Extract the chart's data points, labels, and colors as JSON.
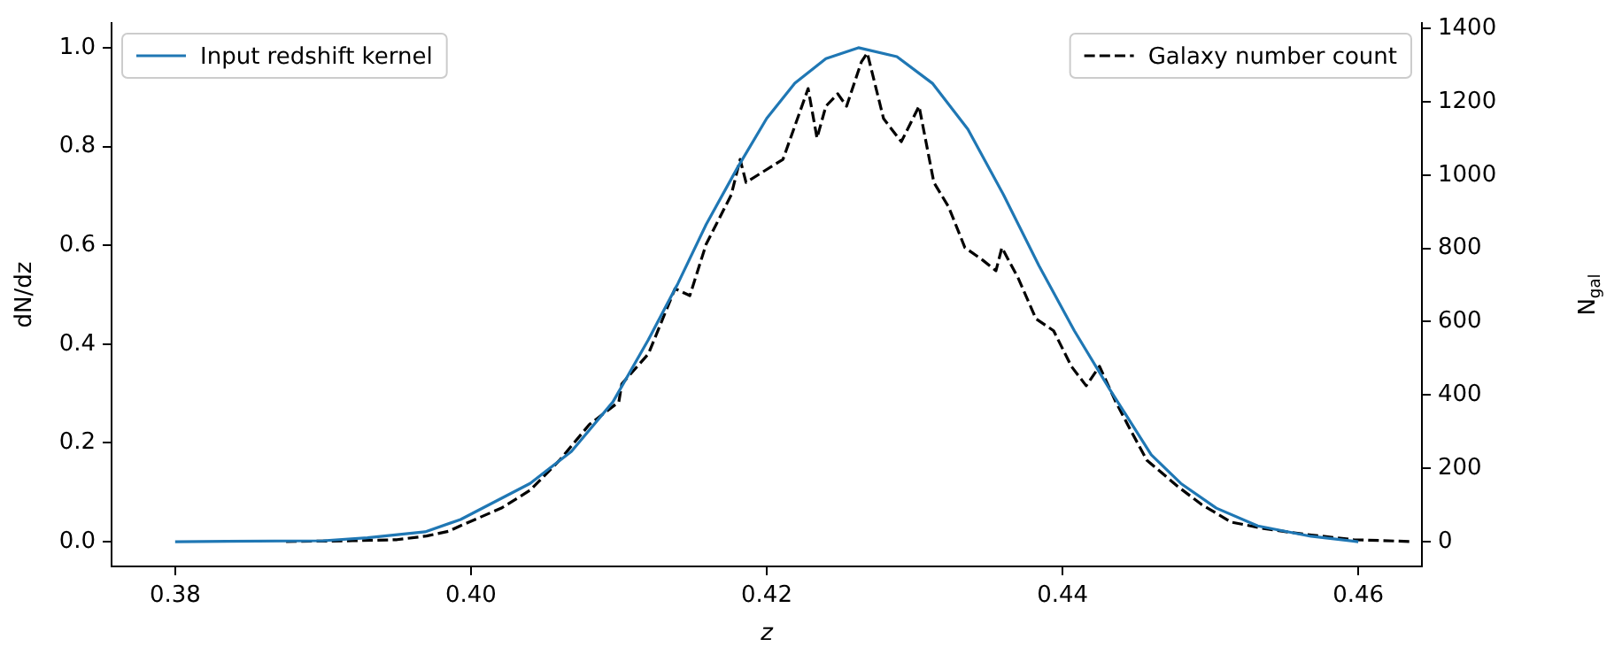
{
  "chart_data": {
    "type": "line",
    "xlabel": "z",
    "ylabel": "dN/dz",
    "y2label": "N$_{gal}$",
    "xlim": [
      0.3757,
      0.4643
    ],
    "xticks": [
      0.38,
      {
        "value": 0.4,
        "label": "0.40"
      },
      0.42,
      0.44,
      0.46
    ],
    "ylim": [
      -0.05,
      1.05
    ],
    "yticks": [
      {
        "value": 0,
        "label": "0.0"
      },
      0.2,
      0.4,
      0.6,
      0.8,
      {
        "value": 1,
        "label": "1.0"
      }
    ],
    "y2lim": [
      -68,
      1415
    ],
    "y2ticks": [
      0,
      200,
      400,
      600,
      800,
      1000,
      1200,
      1400
    ],
    "grid": false,
    "legend": "top",
    "line_style": "solid",
    "marker": "none",
    "series": [
      {
        "name": "Input redshift kernel",
        "color": "#1f77b4",
        "x": [
          0.38,
          0.39,
          0.393,
          0.3969,
          0.3993,
          0.404,
          0.4068,
          0.4096,
          0.412,
          0.414,
          0.4159,
          0.418,
          0.42,
          0.4219,
          0.424,
          0.4262,
          0.4288,
          0.4312,
          0.4336,
          0.436,
          0.4384,
          0.4408,
          0.4432,
          0.446,
          0.448,
          0.4504,
          0.4532,
          0.4568,
          0.46
        ],
        "values": [
          0,
          0.002,
          0.008,
          0.02,
          0.045,
          0.118,
          0.183,
          0.283,
          0.409,
          0.523,
          0.642,
          0.756,
          0.857,
          0.928,
          0.978,
          1.0,
          0.982,
          0.928,
          0.835,
          0.703,
          0.559,
          0.427,
          0.308,
          0.176,
          0.118,
          0.068,
          0.032,
          0.011,
          0
        ]
      },
      {
        "name": "Galaxy number count",
        "color": "#000000",
        "axis": "y2",
        "line_style": "dashed",
        "x": [
          0.3875,
          0.392,
          0.395,
          0.397,
          0.3985,
          0.3993,
          0.4021,
          0.404,
          0.406,
          0.408,
          0.41,
          0.4102,
          0.412,
          0.4138,
          0.4148,
          0.4159,
          0.4176,
          0.4182,
          0.4186,
          0.4211,
          0.4228,
          0.4234,
          0.424,
          0.4248,
          0.4254,
          0.4264,
          0.4268,
          0.4279,
          0.4291,
          0.4303,
          0.4313,
          0.4323,
          0.4334,
          0.4346,
          0.4355,
          0.4359,
          0.437,
          0.4382,
          0.4394,
          0.4406,
          0.4416,
          0.4425,
          0.4436,
          0.4446,
          0.4457,
          0.4478,
          0.4494,
          0.4514,
          0.4538,
          0.4565,
          0.4597,
          0.4635
        ],
        "values": [
          0,
          2,
          5,
          15,
          28,
          43,
          92,
          140,
          222,
          319,
          381,
          430,
          512,
          690,
          671,
          811,
          946,
          1043,
          980,
          1043,
          1236,
          1101,
          1188,
          1222,
          1188,
          1309,
          1333,
          1154,
          1091,
          1188,
          980,
          913,
          802,
          768,
          739,
          802,
          719,
          608,
          575,
          478,
          425,
          478,
          381,
          304,
          222,
          150,
          101,
          53,
          34,
          19,
          5,
          0
        ]
      }
    ]
  }
}
